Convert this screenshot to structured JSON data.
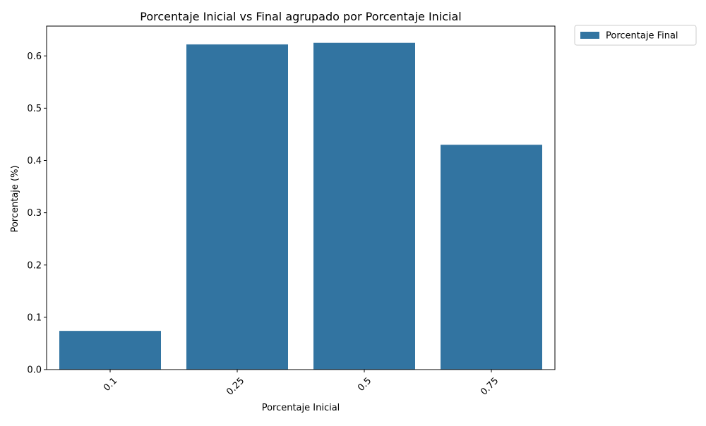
{
  "chart_data": {
    "type": "bar",
    "title": "Porcentaje Inicial vs Final agrupado por Porcentaje Inicial",
    "xlabel": "Porcentaje Inicial",
    "ylabel": "Porcentaje (%)",
    "categories": [
      "0.1",
      "0.25",
      "0.5",
      "0.75"
    ],
    "series": [
      {
        "name": "Porcentaje Final",
        "values": [
          0.074,
          0.622,
          0.625,
          0.43
        ],
        "color": "#3274a1"
      }
    ],
    "ylim": [
      0,
      0.657
    ],
    "yticks": [
      "0.0",
      "0.1",
      "0.2",
      "0.3",
      "0.4",
      "0.5",
      "0.6"
    ],
    "x_tick_rotation_deg": 45,
    "grid": false,
    "legend_position": "outside-top-right"
  }
}
